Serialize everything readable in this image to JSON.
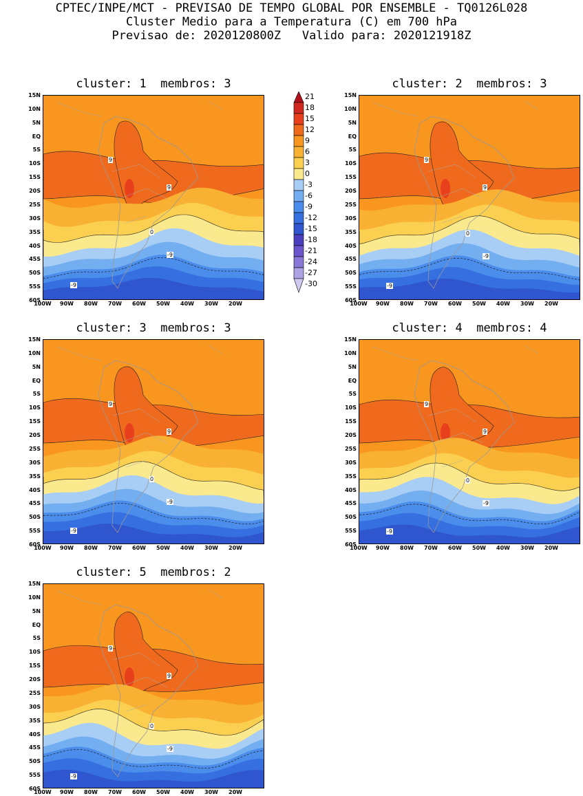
{
  "header": {
    "line1": "CPTEC/INPE/MCT - PREVISAO DE TEMPO GLOBAL POR ENSEMBLE - TQ0126L028",
    "line2": "Cluster Medio para a Temperatura (C) em 700 hPa",
    "line3": "Previsao de: 2020120800Z   Valido para: 2020121918Z"
  },
  "panels": [
    {
      "title": "cluster: 1  membros: 3",
      "variant": 0
    },
    {
      "title": "cluster: 2  membros: 3",
      "variant": 1
    },
    {
      "title": "cluster: 3  membros: 3",
      "variant": 2
    },
    {
      "title": "cluster: 4  membros: 4",
      "variant": 3
    },
    {
      "title": "cluster: 5  membros: 2",
      "variant": 4
    }
  ],
  "lat_labels": [
    "15N",
    "10N",
    "5N",
    "EQ",
    "5S",
    "10S",
    "15S",
    "20S",
    "25S",
    "30S",
    "35S",
    "40S",
    "45S",
    "50S",
    "55S",
    "60S"
  ],
  "lon_labels": [
    "100W",
    "90W",
    "80W",
    "70W",
    "60W",
    "50W",
    "40W",
    "30W",
    "20W"
  ],
  "colorbar": {
    "labels": [
      "21",
      "18",
      "15",
      "12",
      "9",
      "6",
      "3",
      "0",
      "-3",
      "-6",
      "-9",
      "-12",
      "-15",
      "-18",
      "-21",
      "-24",
      "-27",
      "-30"
    ],
    "colors": [
      "#b0121b",
      "#d0281e",
      "#e8401c",
      "#f06a1e",
      "#f89620",
      "#f9b133",
      "#fbd050",
      "#fbe98d",
      "#a8cef5",
      "#73aef0",
      "#4a8deb",
      "#356fe0",
      "#2f55cf",
      "#4a3fbf",
      "#6a55cc",
      "#8a78d8",
      "#ada2e4",
      "#d0c8ef"
    ]
  },
  "contour_labels": {
    "warm": "9",
    "zero": "0",
    "cold": "-9"
  }
}
